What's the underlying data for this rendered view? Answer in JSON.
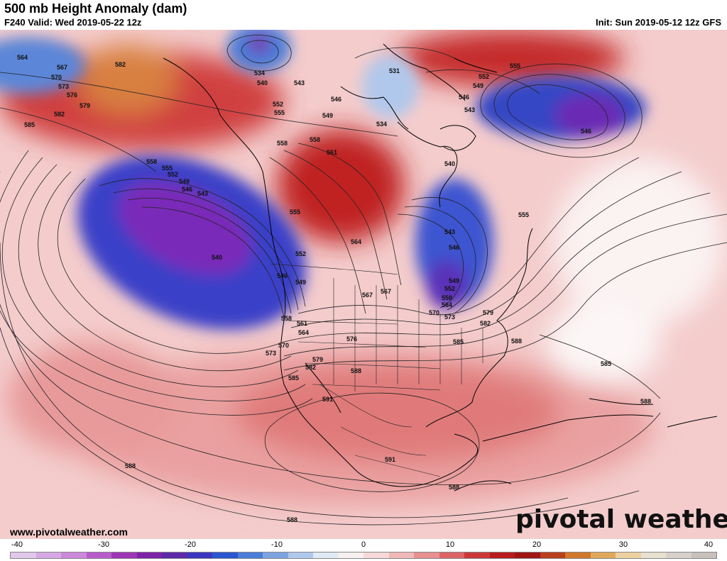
{
  "header": {
    "title": "500 mb Height Anomaly (dam)",
    "valid": "F240 Valid: Wed 2019-05-22 12z",
    "init": "Init: Sun 2019-05-12 12z GFS"
  },
  "footer": {
    "website": "www.pivotalweather.com",
    "logo": "pivotal weather"
  },
  "colorbar": {
    "ticks": [
      "-40",
      "-30",
      "-20",
      "-10",
      "0",
      "10",
      "20",
      "30",
      "40"
    ],
    "colors": [
      "#e0c8ec",
      "#d6a8e4",
      "#cc88da",
      "#b85ccc",
      "#9c36b4",
      "#7e22a8",
      "#5c2aa8",
      "#3a36c0",
      "#2a56d0",
      "#4a7cd8",
      "#7ea4e0",
      "#b0c8ec",
      "#e0eaf6",
      "#f6f0f0",
      "#f6d8d8",
      "#f0b8b8",
      "#e89090",
      "#dc6464",
      "#cc3838",
      "#b81c1c",
      "#a01414",
      "#b8401c",
      "#d0782c",
      "#e0a85c",
      "#ecd0a0",
      "#e8e0d0",
      "#d8d0cc",
      "#c8c0bc"
    ]
  },
  "map": {
    "contour_labels": [
      {
        "text": "564"
      },
      {
        "text": "567"
      },
      {
        "text": "570"
      },
      {
        "text": "573"
      },
      {
        "text": "576"
      },
      {
        "text": "579"
      },
      {
        "text": "582"
      },
      {
        "text": "582"
      },
      {
        "text": "585"
      },
      {
        "text": "534"
      },
      {
        "text": "540"
      },
      {
        "text": "543"
      },
      {
        "text": "531"
      },
      {
        "text": "534"
      },
      {
        "text": "552"
      },
      {
        "text": "549"
      },
      {
        "text": "555"
      },
      {
        "text": "546"
      },
      {
        "text": "543"
      },
      {
        "text": "546"
      },
      {
        "text": "552"
      },
      {
        "text": "555"
      },
      {
        "text": "549"
      },
      {
        "text": "546"
      },
      {
        "text": "558"
      },
      {
        "text": "558"
      },
      {
        "text": "561"
      },
      {
        "text": "558"
      },
      {
        "text": "555"
      },
      {
        "text": "552"
      },
      {
        "text": "549"
      },
      {
        "text": "546"
      },
      {
        "text": "543"
      },
      {
        "text": "540"
      },
      {
        "text": "540"
      },
      {
        "text": "555"
      },
      {
        "text": "564"
      },
      {
        "text": "543"
      },
      {
        "text": "546"
      },
      {
        "text": "555"
      },
      {
        "text": "552"
      },
      {
        "text": "546"
      },
      {
        "text": "549"
      },
      {
        "text": "549"
      },
      {
        "text": "552"
      },
      {
        "text": "558"
      },
      {
        "text": "564"
      },
      {
        "text": "567"
      },
      {
        "text": "570"
      },
      {
        "text": "573"
      },
      {
        "text": "579"
      },
      {
        "text": "582"
      },
      {
        "text": "558"
      },
      {
        "text": "561"
      },
      {
        "text": "564"
      },
      {
        "text": "570"
      },
      {
        "text": "573"
      },
      {
        "text": "576"
      },
      {
        "text": "579"
      },
      {
        "text": "582"
      },
      {
        "text": "585"
      },
      {
        "text": "588"
      },
      {
        "text": "585"
      },
      {
        "text": "588"
      },
      {
        "text": "585"
      },
      {
        "text": "591"
      },
      {
        "text": "591"
      },
      {
        "text": "588"
      },
      {
        "text": "588"
      },
      {
        "text": "588"
      },
      {
        "text": "588"
      },
      {
        "text": "567"
      }
    ]
  }
}
